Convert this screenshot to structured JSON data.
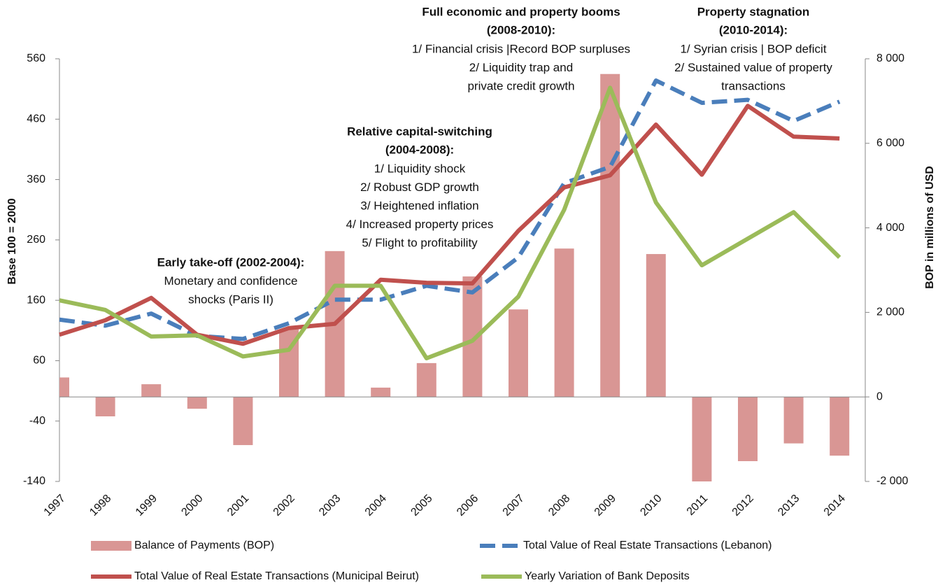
{
  "chart_data": {
    "type": "combo",
    "y_label": "Base 100 = 2000",
    "y2_label": "BOP in millions of USD",
    "categories": [
      "1997",
      "1998",
      "1999",
      "2000",
      "2001",
      "2002",
      "2003",
      "2004",
      "2005",
      "2006",
      "2007",
      "2008",
      "2009",
      "2010",
      "2011",
      "2012",
      "2013",
      "2014"
    ],
    "ylim": [
      -140,
      560
    ],
    "yticks": [
      -140,
      -40,
      60,
      160,
      260,
      360,
      460,
      560
    ],
    "y2lim": [
      -2000,
      8000
    ],
    "y2ticks": [
      {
        "value": -2000,
        "label": "-2 000"
      },
      0,
      {
        "value": 2000,
        "label": "2 000"
      },
      {
        "value": 4000,
        "label": "4 000"
      },
      {
        "value": 6000,
        "label": "6 000"
      },
      {
        "value": 8000,
        "label": "8 000"
      }
    ],
    "series": [
      {
        "name": "Balance of Payments (BOP)",
        "type": "bar",
        "axis": "y2",
        "color": "#d99694",
        "values": [
          460,
          -460,
          300,
          -280,
          -1140,
          1600,
          3450,
          220,
          800,
          2850,
          2070,
          3510,
          7640,
          3380,
          -2000,
          -1520,
          -1100,
          -1390
        ]
      },
      {
        "name": "Total Value of Real Estate Transactions (Lebanon)",
        "type": "line",
        "dashed": true,
        "color": "#4a7ebb",
        "values": [
          128,
          118,
          138,
          101,
          96,
          122,
          161,
          161,
          184,
          173,
          231,
          354,
          381,
          524,
          487,
          492,
          457,
          489
        ]
      },
      {
        "name": "Total Value of Real Estate Transactions (Municipal Beirut)",
        "type": "line",
        "color": "#c0504d",
        "values": [
          103,
          127,
          164,
          103,
          88,
          114,
          121,
          194,
          189,
          188,
          275,
          347,
          367,
          451,
          368,
          482,
          431,
          428
        ]
      },
      {
        "name": "Yearly Variation of Bank Deposits",
        "type": "line",
        "color": "#9bbb59",
        "values": [
          160,
          144,
          100,
          102,
          67,
          78,
          184,
          184,
          64,
          93,
          166,
          310,
          512,
          322,
          218,
          262,
          306,
          231
        ]
      }
    ],
    "annotations": [
      {
        "title": [
          "Early take-off (2002-2004):"
        ],
        "lines": [
          "Monetary and confidence",
          "shocks (Paris II)"
        ]
      },
      {
        "title": [
          "Relative capital-switching",
          "(2004-2008):"
        ],
        "lines": [
          "1/ Liquidity shock",
          "2/ Robust GDP growth",
          "3/ Heightened inflation",
          "4/ Increased property prices",
          "5/ Flight to profitability"
        ]
      },
      {
        "title": [
          "Full economic and property booms",
          "(2008-2010):"
        ],
        "lines": [
          "1/ Financial crisis |Record BOP surpluses",
          "2/ Liquidity trap and",
          "private credit growth"
        ]
      },
      {
        "title": [
          "Property stagnation",
          "(2010-2014):"
        ],
        "lines": [
          "1/ Syrian crisis | BOP deficit",
          "2/ Sustained value of property",
          "transactions"
        ]
      }
    ]
  }
}
